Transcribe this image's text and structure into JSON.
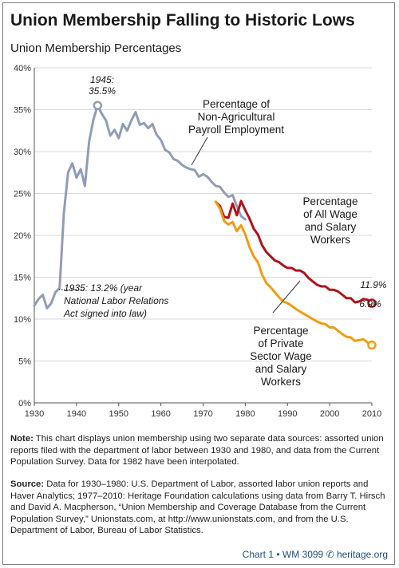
{
  "title": "Union Membership Falling to Historic Lows",
  "subtitle": "Union Membership Percentages",
  "annotations": {
    "peak_year": "1945:",
    "peak_value": "35.5%",
    "nlra_line1": "1935: 13.2% (year",
    "nlra_line2": "National Labor Relations",
    "nlra_line3": "Act signed into law)",
    "nonag_1": "Percentage of",
    "nonag_2": "Non-Agricultural",
    "nonag_3": "Payroll Employment",
    "all_1": "Percentage",
    "all_2": "of All Wage",
    "all_3": "and Salary",
    "all_4": "Workers",
    "priv_1": "Percentage",
    "priv_2": "of Private",
    "priv_3": "Sector Wage",
    "priv_4": "and Salary",
    "priv_5": "Workers",
    "end_all": "11.9%",
    "end_priv": "6.9%"
  },
  "notes": {
    "note_label": "Note:",
    "note_text": " This chart displays union membership using two separate data sources: assorted union reports filed with the department of labor between 1930 and 1980, and data from the Current Population Survey. Data for 1982 have been interpolated.",
    "source_label": "Source:",
    "source_text": " Data for 1930–1980: U.S. Department of Labor, assorted labor union reports and Haver Analytics; 1977–2010: Heritage Foundation calculations using data from Barry T. Hirsch and David A. Macpherson, “Union Membership and Coverage Database from the Current Population Survey,” Unionstats.com, at http://www.unionstats.com, and from the U.S. Department of Labor, Bureau of Labor Statistics."
  },
  "footer": "Chart 1 • WM 3099 ✆ heritage.org",
  "colors": {
    "nonag": "#8f9db8",
    "all_workers": "#b0121b",
    "private": "#f39c12",
    "grid": "#d8d8d8"
  },
  "chart_data": {
    "type": "line",
    "title": "Union Membership Falling to Historic Lows",
    "subtitle": "Union Membership Percentages",
    "xlim": [
      1930,
      2010
    ],
    "ylim": [
      0,
      40
    ],
    "x_ticks": [
      1930,
      1940,
      1950,
      1960,
      1970,
      1980,
      1990,
      2000,
      2010
    ],
    "y_ticks": [
      "0%",
      "5%",
      "10%",
      "15%",
      "20%",
      "25%",
      "30%",
      "35%",
      "40%"
    ],
    "grid": true,
    "series": [
      {
        "name": "Percentage of Non-Agricultural Payroll Employment",
        "color": "#8f9db8",
        "x": [
          1930,
          1931,
          1932,
          1933,
          1934,
          1935,
          1936,
          1937,
          1938,
          1939,
          1940,
          1941,
          1942,
          1943,
          1944,
          1945,
          1946,
          1947,
          1948,
          1949,
          1950,
          1951,
          1952,
          1953,
          1954,
          1955,
          1956,
          1957,
          1958,
          1959,
          1960,
          1961,
          1962,
          1963,
          1964,
          1965,
          1966,
          1967,
          1968,
          1969,
          1970,
          1971,
          1972,
          1973,
          1974,
          1975,
          1976,
          1977,
          1978,
          1979,
          1980
        ],
        "y": [
          11.6,
          12.4,
          12.9,
          11.3,
          11.9,
          13.2,
          13.7,
          22.6,
          27.5,
          28.6,
          26.9,
          27.9,
          25.9,
          31.2,
          33.8,
          35.5,
          34.5,
          33.7,
          31.9,
          32.6,
          31.6,
          33.3,
          32.5,
          33.7,
          34.7,
          33.2,
          33.4,
          32.8,
          33.3,
          32.0,
          31.4,
          30.2,
          29.9,
          29.1,
          28.9,
          28.4,
          28.1,
          27.9,
          27.8,
          27.0,
          27.3,
          27.0,
          26.4,
          25.9,
          25.8,
          25.1,
          24.6,
          24.8,
          23.5,
          22.3,
          21.9
        ]
      },
      {
        "name": "Percentage of All Wage and Salary Workers",
        "color": "#b0121b",
        "x": [
          1973,
          1974,
          1975,
          1976,
          1977,
          1978,
          1979,
          1980,
          1981,
          1982,
          1983,
          1984,
          1985,
          1986,
          1987,
          1988,
          1989,
          1990,
          1991,
          1992,
          1993,
          1994,
          1995,
          1996,
          1997,
          1998,
          1999,
          2000,
          2001,
          2002,
          2003,
          2004,
          2005,
          2006,
          2007,
          2008,
          2009,
          2010
        ],
        "y": [
          24.0,
          23.5,
          22.2,
          22.1,
          23.8,
          22.4,
          24.1,
          23.0,
          22.0,
          20.8,
          20.1,
          18.8,
          18.0,
          17.5,
          17.0,
          16.8,
          16.4,
          16.1,
          16.1,
          15.8,
          15.8,
          15.5,
          14.9,
          14.5,
          14.1,
          13.9,
          13.9,
          13.5,
          13.5,
          13.3,
          12.9,
          12.5,
          12.5,
          12.0,
          12.1,
          12.4,
          12.3,
          11.9
        ]
      },
      {
        "name": "Percentage of Private Sector Wage and Salary Workers",
        "color": "#f39c12",
        "x": [
          1973,
          1974,
          1975,
          1976,
          1977,
          1978,
          1979,
          1980,
          1981,
          1982,
          1983,
          1984,
          1985,
          1986,
          1987,
          1988,
          1989,
          1990,
          1991,
          1992,
          1993,
          1994,
          1995,
          1996,
          1997,
          1998,
          1999,
          2000,
          2001,
          2002,
          2003,
          2004,
          2005,
          2006,
          2007,
          2008,
          2009,
          2010
        ],
        "y": [
          24.0,
          23.2,
          21.7,
          21.3,
          21.6,
          20.5,
          21.2,
          20.1,
          18.6,
          17.5,
          16.8,
          15.3,
          14.3,
          13.8,
          13.2,
          12.6,
          12.1,
          11.9,
          11.6,
          11.2,
          10.9,
          10.6,
          10.3,
          10.0,
          9.7,
          9.5,
          9.4,
          9.0,
          9.0,
          8.6,
          8.2,
          7.9,
          7.8,
          7.4,
          7.5,
          7.6,
          7.2,
          6.9
        ]
      }
    ]
  }
}
